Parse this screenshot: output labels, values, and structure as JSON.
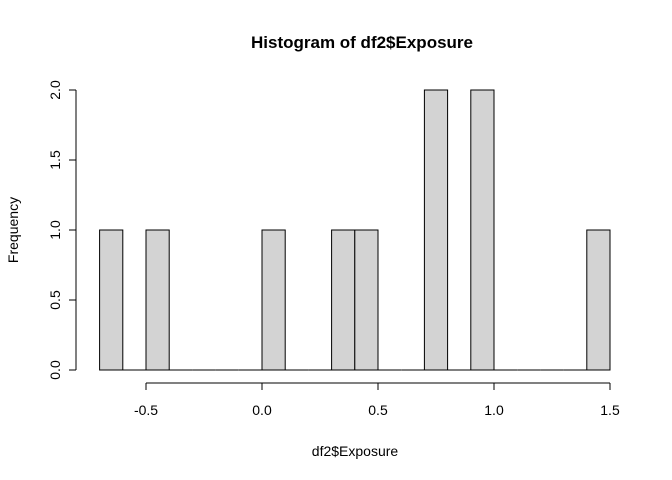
{
  "chart_data": {
    "type": "bar",
    "title": "Histogram of df2$Exposure",
    "xlabel": "df2$Exposure",
    "ylabel": "Frequency",
    "bin_width": 0.1,
    "bins": [
      {
        "start": -0.7,
        "end": -0.6,
        "count": 1
      },
      {
        "start": -0.6,
        "end": -0.5,
        "count": 0
      },
      {
        "start": -0.5,
        "end": -0.4,
        "count": 1
      },
      {
        "start": -0.4,
        "end": -0.3,
        "count": 0
      },
      {
        "start": -0.3,
        "end": -0.2,
        "count": 0
      },
      {
        "start": -0.2,
        "end": -0.1,
        "count": 0
      },
      {
        "start": -0.1,
        "end": 0.0,
        "count": 0
      },
      {
        "start": 0.0,
        "end": 0.1,
        "count": 1
      },
      {
        "start": 0.1,
        "end": 0.2,
        "count": 0
      },
      {
        "start": 0.2,
        "end": 0.3,
        "count": 0
      },
      {
        "start": 0.3,
        "end": 0.4,
        "count": 1
      },
      {
        "start": 0.4,
        "end": 0.5,
        "count": 1
      },
      {
        "start": 0.5,
        "end": 0.6,
        "count": 0
      },
      {
        "start": 0.6,
        "end": 0.7,
        "count": 0
      },
      {
        "start": 0.7,
        "end": 0.8,
        "count": 2
      },
      {
        "start": 0.8,
        "end": 0.9,
        "count": 0
      },
      {
        "start": 0.9,
        "end": 1.0,
        "count": 2
      },
      {
        "start": 1.0,
        "end": 1.1,
        "count": 0
      },
      {
        "start": 1.1,
        "end": 1.2,
        "count": 0
      },
      {
        "start": 1.2,
        "end": 1.3,
        "count": 0
      },
      {
        "start": 1.3,
        "end": 1.4,
        "count": 0
      },
      {
        "start": 1.4,
        "end": 1.5,
        "count": 1
      }
    ],
    "xlim": [
      -0.7,
      1.5
    ],
    "ylim": [
      0,
      2
    ],
    "x_ticks": [
      -0.5,
      0.0,
      0.5,
      1.0,
      1.5
    ],
    "x_tick_labels": [
      "-0.5",
      "0.0",
      "0.5",
      "1.0",
      "1.5"
    ],
    "y_ticks": [
      0.0,
      0.5,
      1.0,
      1.5,
      2.0
    ],
    "y_tick_labels": [
      "0.0",
      "0.5",
      "1.0",
      "1.5",
      "2.0"
    ],
    "bar_fill": "#d3d3d3",
    "bar_stroke": "#000000",
    "grid": false
  }
}
